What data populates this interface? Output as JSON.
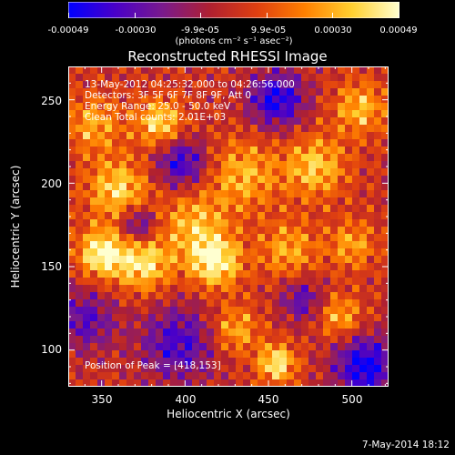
{
  "chart_data": {
    "type": "heatmap",
    "title": "Reconstructed RHESSI Image",
    "xlabel": "Heliocentric X (arcsec)",
    "ylabel": "Heliocentric Y (arcsec)",
    "xlim": [
      330,
      522
    ],
    "ylim": [
      78,
      270
    ],
    "x_ticks": [
      "350",
      "400",
      "450",
      "500"
    ],
    "y_ticks": [
      "100",
      "150",
      "200",
      "250"
    ],
    "colorbar": {
      "min": -0.00049,
      "max": 0.00049,
      "tick_labels": [
        "-0.00049",
        "-0.00030",
        "-9.9e-05",
        "9.9e-05",
        "0.00030",
        "0.00049"
      ],
      "unit_label": "(photons cm⁻² s⁻¹ asec⁻²)",
      "colormap": [
        "#0000ff",
        "#4a00c8",
        "#7a1a8c",
        "#b02030",
        "#e04010",
        "#ff8000",
        "#ffd030",
        "#ffffd0"
      ]
    },
    "annotations": [
      "13-May-2012 04:25:32.000 to 04:26:56.000",
      "Detectors: 3F 5F 6F 7F 8F 9F, Att 0",
      "Energy Range: 25.0 - 50.0 keV",
      "Clean    Total counts: 2.01E+03"
    ],
    "peak_label": "Position of Peak = [418,153]",
    "peak": [
      418,
      153
    ],
    "hotspots": [
      {
        "x": 350,
        "y": 158,
        "amp": 0.00049,
        "sigma": 10
      },
      {
        "x": 375,
        "y": 152,
        "amp": 0.00042,
        "sigma": 12
      },
      {
        "x": 418,
        "y": 153,
        "amp": 0.00049,
        "sigma": 11
      },
      {
        "x": 405,
        "y": 176,
        "amp": 0.0003,
        "sigma": 14
      },
      {
        "x": 360,
        "y": 196,
        "amp": 0.00038,
        "sigma": 13
      },
      {
        "x": 385,
        "y": 236,
        "amp": 0.0004,
        "sigma": 10
      },
      {
        "x": 345,
        "y": 235,
        "amp": 0.00028,
        "sigma": 12
      },
      {
        "x": 435,
        "y": 205,
        "amp": 0.0003,
        "sigma": 15
      },
      {
        "x": 478,
        "y": 210,
        "amp": 0.00035,
        "sigma": 13
      },
      {
        "x": 462,
        "y": 160,
        "amp": 0.00028,
        "sigma": 12
      },
      {
        "x": 505,
        "y": 245,
        "amp": 0.00032,
        "sigma": 11
      },
      {
        "x": 455,
        "y": 92,
        "amp": 0.00045,
        "sigma": 8
      },
      {
        "x": 493,
        "y": 120,
        "amp": 0.0003,
        "sigma": 9
      },
      {
        "x": 430,
        "y": 112,
        "amp": 0.0003,
        "sigma": 10
      },
      {
        "x": 500,
        "y": 163,
        "amp": 0.00027,
        "sigma": 10
      },
      {
        "x": 396,
        "y": 104,
        "amp": -0.00035,
        "sigma": 16
      },
      {
        "x": 398,
        "y": 212,
        "amp": -0.0004,
        "sigma": 11
      },
      {
        "x": 372,
        "y": 175,
        "amp": -0.00038,
        "sigma": 8
      },
      {
        "x": 455,
        "y": 250,
        "amp": -0.00045,
        "sigma": 12
      },
      {
        "x": 508,
        "y": 90,
        "amp": -0.00049,
        "sigma": 13
      },
      {
        "x": 340,
        "y": 118,
        "amp": -0.0003,
        "sigma": 13
      },
      {
        "x": 470,
        "y": 130,
        "amp": -0.0003,
        "sigma": 9
      }
    ]
  },
  "footer": {
    "timestamp": "7-May-2014 18:12"
  }
}
